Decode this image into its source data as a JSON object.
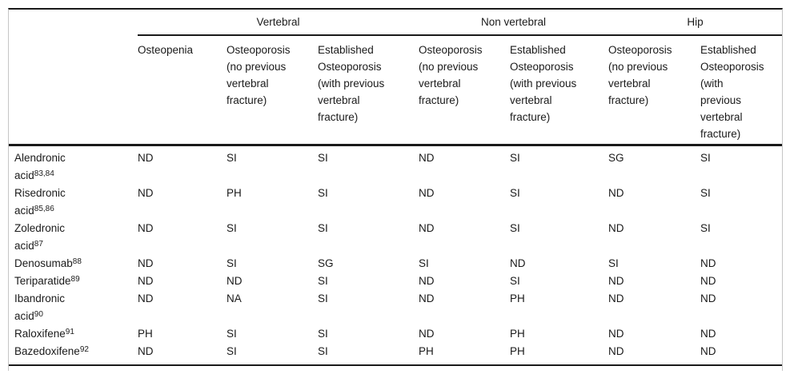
{
  "table": {
    "groups": [
      {
        "label": "Vertebral",
        "span": 3
      },
      {
        "label": "Non vertebral",
        "span": 2
      },
      {
        "label": "Hip",
        "span": 2
      }
    ],
    "column_headers": [
      {
        "lines": [
          "Osteopenia"
        ]
      },
      {
        "lines": [
          "Osteoporosis",
          "(no previous",
          "vertebral",
          "fracture)"
        ]
      },
      {
        "lines": [
          "Established",
          "Osteoporosis",
          "(with previous",
          "vertebral",
          "fracture)"
        ]
      },
      {
        "lines": [
          "Osteoporosis",
          "(no previous",
          "vertebral",
          "fracture)"
        ]
      },
      {
        "lines": [
          "Established",
          "Osteoporosis",
          "(with previous",
          "vertebral",
          "fracture)"
        ]
      },
      {
        "lines": [
          "Osteoporosis",
          "(no previous",
          "vertebral",
          "fracture)"
        ]
      },
      {
        "lines": [
          "Established",
          "Osteoporosis",
          "(with",
          "previous",
          "vertebral",
          "fracture)"
        ]
      }
    ],
    "rows": [
      {
        "drug_lines": [
          "Alendronic",
          "acid"
        ],
        "ref": "83,84",
        "values": [
          "ND",
          "SI",
          "SI",
          "ND",
          "SI",
          "SG",
          "SI"
        ]
      },
      {
        "drug_lines": [
          "Risedronic",
          "acid"
        ],
        "ref": "85,86",
        "values": [
          "ND",
          "PH",
          "SI",
          "ND",
          "SI",
          "ND",
          "SI"
        ]
      },
      {
        "drug_lines": [
          "Zoledronic",
          "acid"
        ],
        "ref": "87",
        "values": [
          "ND",
          "SI",
          "SI",
          "ND",
          "SI",
          "ND",
          "SI"
        ]
      },
      {
        "drug_lines": [
          "Denosumab"
        ],
        "ref": "88",
        "values": [
          "ND",
          "SI",
          "SG",
          "SI",
          "ND",
          "SI",
          "ND"
        ]
      },
      {
        "drug_lines": [
          "Teriparatide"
        ],
        "ref": "89",
        "values": [
          "ND",
          "ND",
          "SI",
          "ND",
          "SI",
          "ND",
          "ND"
        ]
      },
      {
        "drug_lines": [
          "Ibandronic",
          "acid"
        ],
        "ref": "90",
        "values": [
          "ND",
          "NA",
          "SI",
          "ND",
          "PH",
          "ND",
          "ND"
        ]
      },
      {
        "drug_lines": [
          "Raloxifene"
        ],
        "ref": "91",
        "values": [
          "PH",
          "SI",
          "SI",
          "ND",
          "PH",
          "ND",
          "ND"
        ]
      },
      {
        "drug_lines": [
          "Bazedoxifene"
        ],
        "ref": "92",
        "values": [
          "ND",
          "SI",
          "SI",
          "PH",
          "PH",
          "ND",
          "ND"
        ]
      }
    ]
  },
  "colors": {
    "rule": "#1a1a1a",
    "frame_border": "#c6c6c6",
    "text": "#1a1a1a",
    "background": "#ffffff"
  }
}
